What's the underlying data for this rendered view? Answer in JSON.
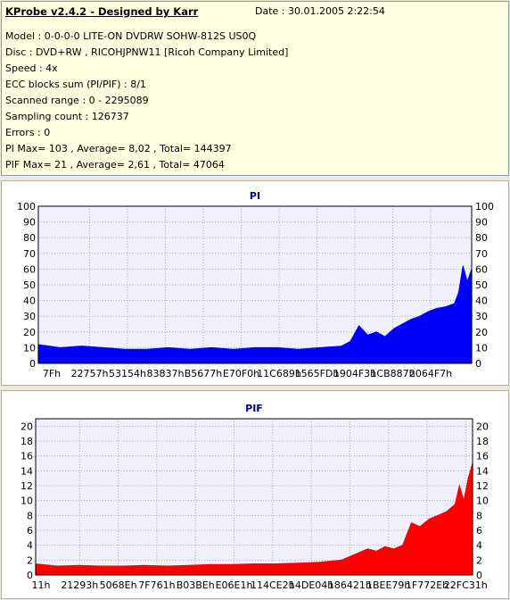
{
  "header": {
    "app_title": "KProbe v2.4.2 - Designed by Karr",
    "date_label": "Date : 30.01.2005 2:22:54"
  },
  "info_lines": [
    "Model : 0-0-0-0 LITE-ON DVDRW SOHW-812S  US0Q",
    "Disc : DVD+RW , RICOHJPNW11 [Ricoh Company Limited]",
    "Speed : 4x",
    "ECC blocks sum (PI/PIF) : 8/1",
    "Scanned range : 0 - 2295089",
    "Sampling count : 126737",
    "Errors : 0",
    "PI Max= 103 , Average= 8,02 , Total= 144397",
    "PIF Max= 21 , Average= 2,61 , Total= 47064"
  ],
  "chart_data": [
    {
      "type": "area",
      "title": "PI",
      "color": "#0000ff",
      "ylim": [
        0,
        100
      ],
      "y_ticks": [
        0,
        10,
        20,
        30,
        40,
        50,
        60,
        70,
        80,
        90,
        100
      ],
      "x_tick_labels": [
        "7Fh",
        "22757h",
        "53154h",
        "83837h",
        "B5677h",
        "E70F0h",
        "11C689h",
        "1565FDh",
        "1904F3h",
        "1CB887h",
        "2064F7h"
      ],
      "grid": true,
      "x": [
        0,
        0.05,
        0.1,
        0.15,
        0.2,
        0.25,
        0.3,
        0.35,
        0.4,
        0.45,
        0.5,
        0.55,
        0.6,
        0.65,
        0.7,
        0.72,
        0.74,
        0.76,
        0.78,
        0.8,
        0.82,
        0.84,
        0.86,
        0.88,
        0.9,
        0.92,
        0.94,
        0.96,
        0.97,
        0.98,
        0.99,
        1.0
      ],
      "values": [
        12,
        10,
        11,
        10,
        9,
        9,
        10,
        9,
        10,
        9,
        10,
        10,
        9,
        10,
        11,
        14,
        24,
        18,
        20,
        17,
        22,
        25,
        28,
        30,
        33,
        35,
        36,
        38,
        45,
        62,
        52,
        60
      ]
    },
    {
      "type": "area",
      "title": "PIF",
      "color": "#ff0000",
      "ylim": [
        0,
        21
      ],
      "y_ticks": [
        0,
        2,
        4,
        6,
        8,
        10,
        12,
        14,
        16,
        18,
        20
      ],
      "x_tick_labels": [
        "11h",
        "21293h",
        "5068Eh",
        "7F761h",
        "B03BEh",
        "E06E1h",
        "114CE2h",
        "14DE04h",
        "186421h",
        "1BEE79h",
        "1F772Eh",
        "22FC31h"
      ],
      "grid": true,
      "x": [
        0,
        0.05,
        0.1,
        0.15,
        0.2,
        0.25,
        0.3,
        0.35,
        0.4,
        0.45,
        0.5,
        0.55,
        0.6,
        0.65,
        0.7,
        0.72,
        0.74,
        0.76,
        0.78,
        0.8,
        0.82,
        0.84,
        0.86,
        0.88,
        0.9,
        0.92,
        0.94,
        0.96,
        0.97,
        0.98,
        0.99,
        1.0
      ],
      "values": [
        1.5,
        1.2,
        1.3,
        1.2,
        1.2,
        1.3,
        1.2,
        1.3,
        1.4,
        1.4,
        1.5,
        1.5,
        1.6,
        1.7,
        2.0,
        2.5,
        3.0,
        3.5,
        3.2,
        3.8,
        3.5,
        4.0,
        7.0,
        6.5,
        7.5,
        8.0,
        8.5,
        9.5,
        12.0,
        10.0,
        13.0,
        15.0
      ]
    }
  ]
}
